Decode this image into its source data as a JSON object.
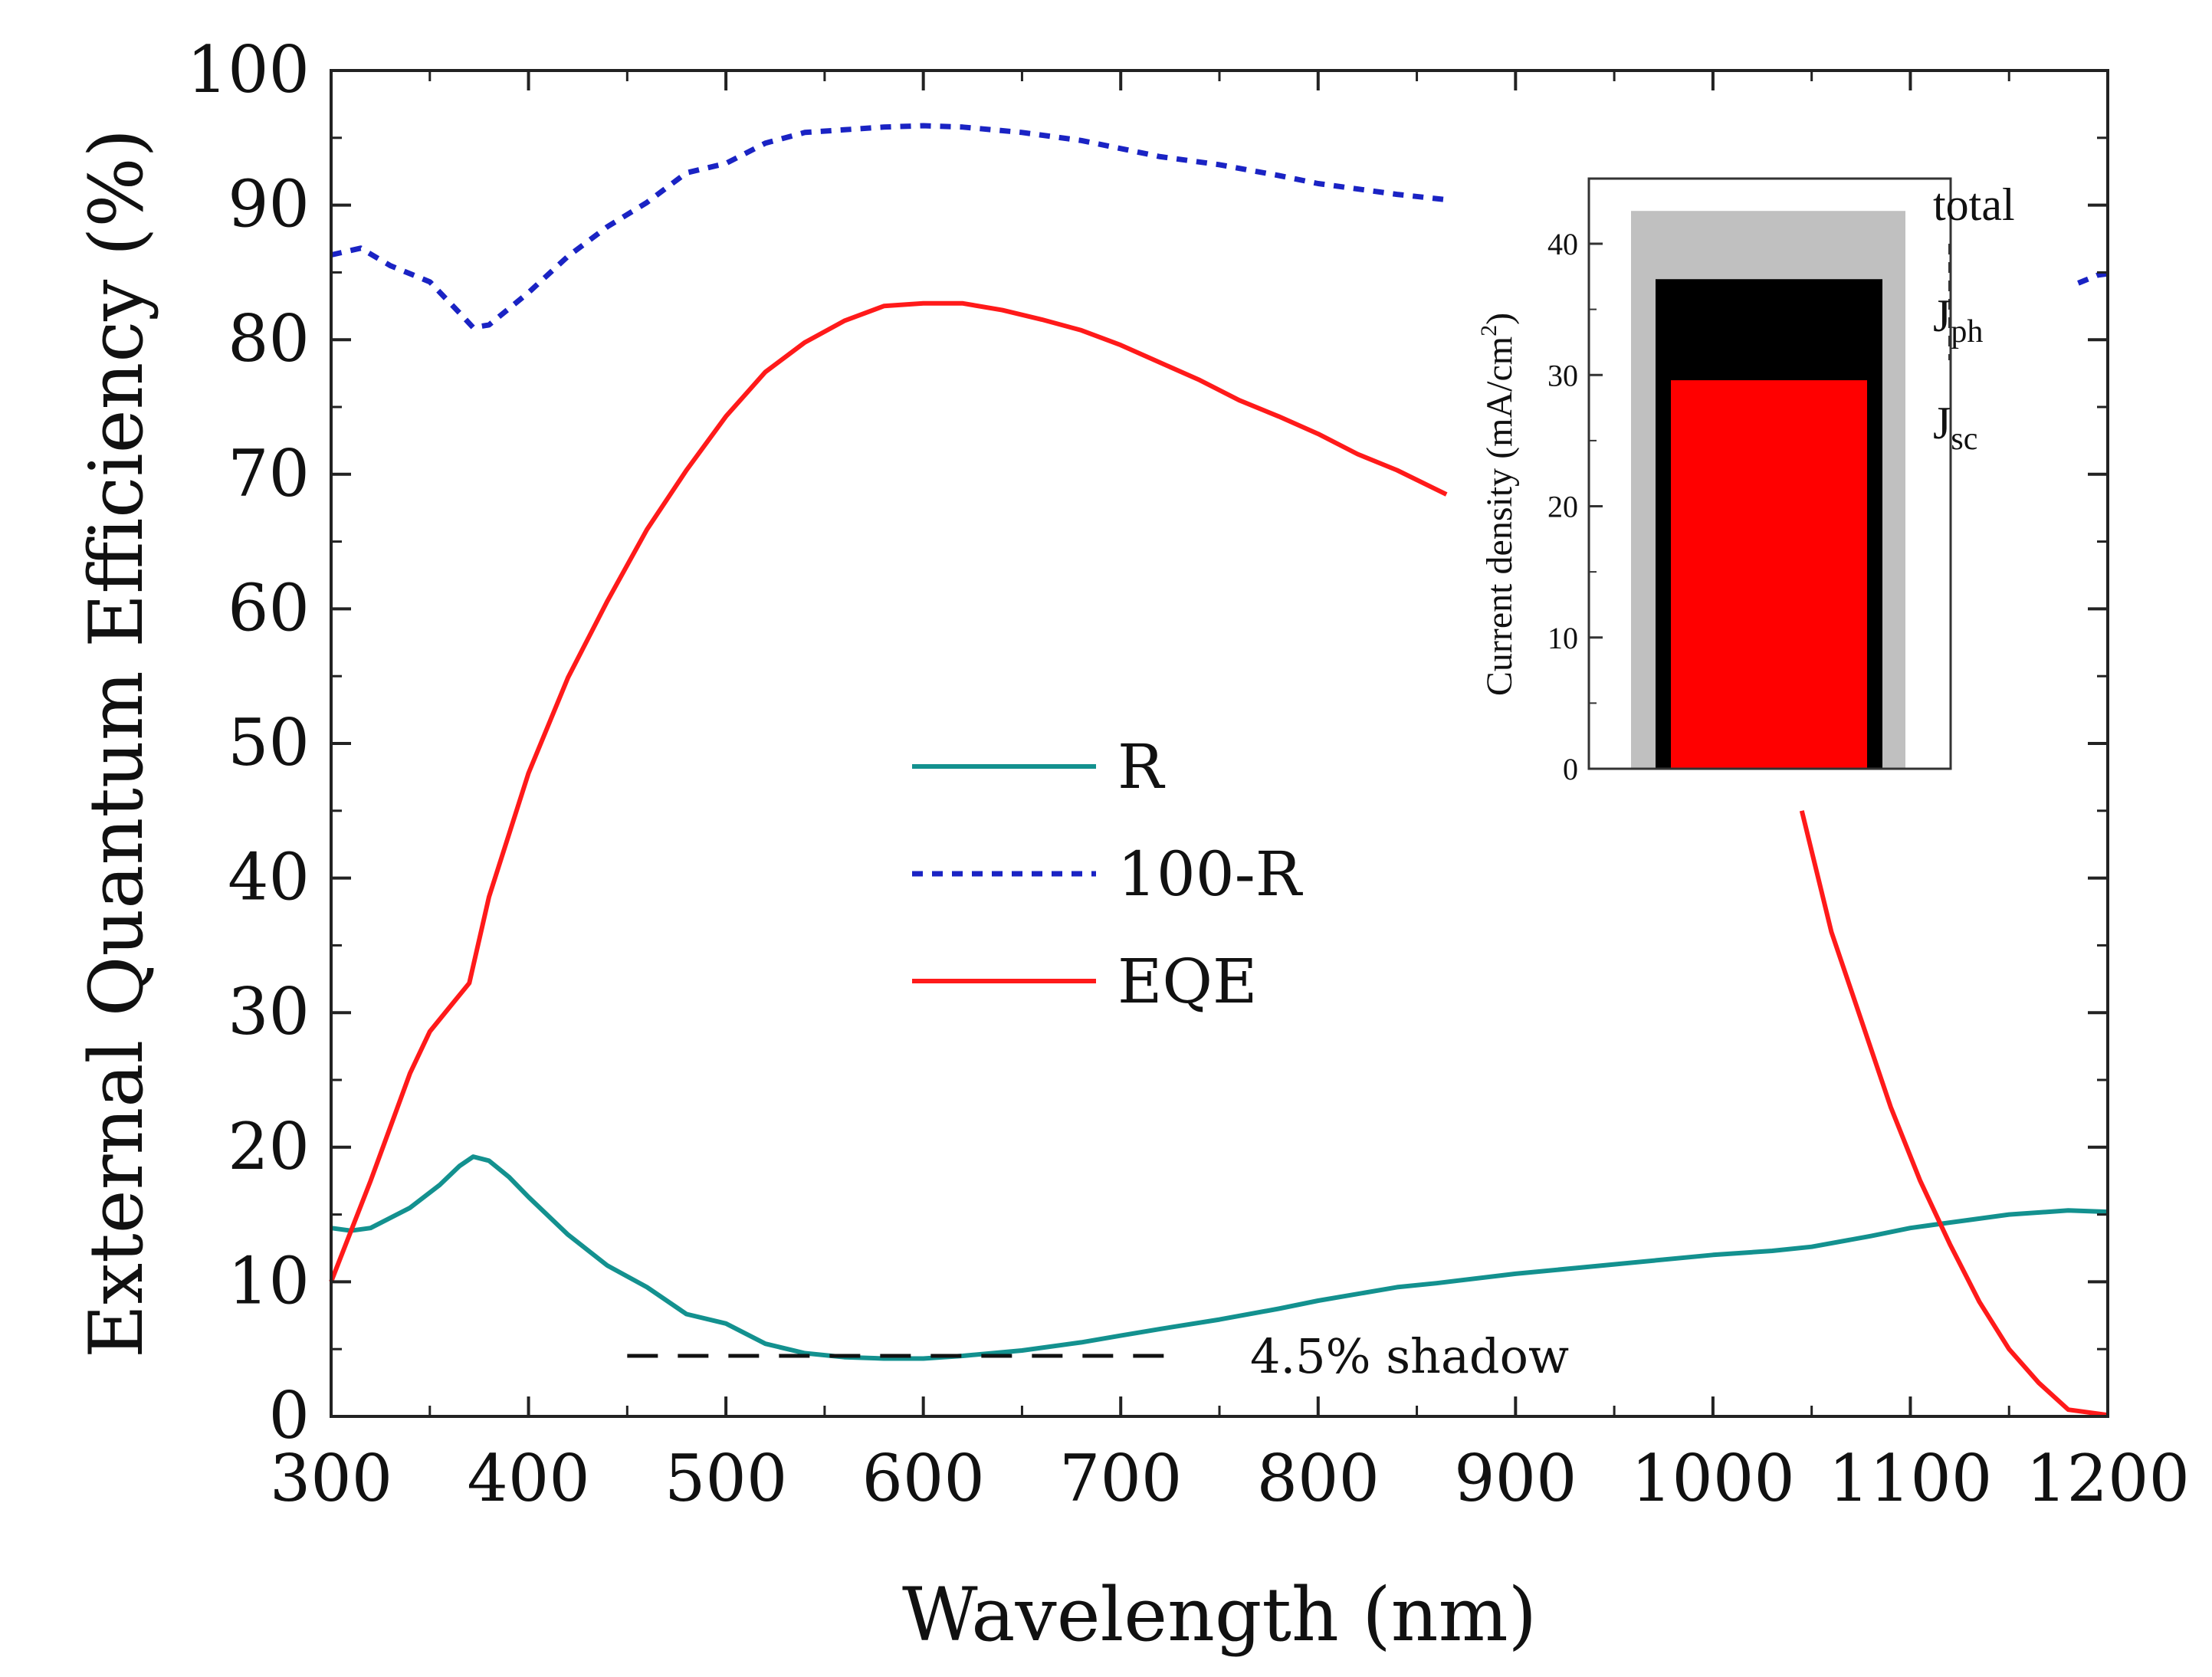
{
  "chart_data": [
    {
      "type": "line",
      "title": "",
      "xlabel": "Wavelength (nm)",
      "ylabel": "External Quantum Efficiency (%)",
      "xlim": [
        300,
        1200
      ],
      "ylim": [
        0,
        100
      ],
      "x_ticks": [
        300,
        400,
        500,
        600,
        700,
        800,
        900,
        1000,
        1100,
        1200
      ],
      "y_ticks": [
        0,
        10,
        20,
        30,
        40,
        50,
        60,
        70,
        80,
        90,
        100
      ],
      "x_tick_labels": [
        "300",
        "400",
        "500",
        "600",
        "700",
        "800",
        "900",
        "1000",
        "1100",
        "1200"
      ],
      "y_tick_labels": [
        "0",
        "10",
        "20",
        "30",
        "40",
        "50",
        "60",
        "70",
        "80",
        "90",
        "100"
      ],
      "grid": false,
      "legend_position": "center",
      "series": [
        {
          "name": "R",
          "color": "#13918f",
          "style": "solid",
          "x": [
            300,
            310,
            320,
            340,
            355,
            365,
            372,
            380,
            390,
            400,
            420,
            440,
            460,
            480,
            500,
            520,
            540,
            560,
            580,
            600,
            620,
            650,
            680,
            700,
            720,
            750,
            780,
            800,
            840,
            860,
            900,
            950,
            1000,
            1030,
            1050,
            1080,
            1100,
            1110,
            1130,
            1150,
            1180,
            1200
          ],
          "values": [
            14,
            13.8,
            14,
            15.5,
            17.2,
            18.6,
            19.3,
            19.0,
            17.8,
            16.3,
            13.5,
            11.2,
            9.6,
            7.6,
            6.9,
            5.4,
            4.7,
            4.4,
            4.3,
            4.3,
            4.5,
            4.9,
            5.5,
            6.0,
            6.5,
            7.2,
            8.0,
            8.6,
            9.6,
            9.9,
            10.6,
            11.3,
            12.0,
            12.3,
            12.6,
            13.4,
            14.0,
            14.2,
            14.6,
            15.0,
            15.3,
            15.2
          ]
        },
        {
          "name": "100-R",
          "color": "#1a23c4",
          "style": "dotted",
          "segments": [
            {
              "x": [
                300,
                315,
                330,
                350,
                365,
                372,
                380,
                400,
                420,
                440,
                460,
                480,
                500,
                520,
                540,
                560,
                580,
                600,
                620,
                650,
                680,
                700,
                720,
                750,
                780,
                800,
                840,
                865
              ],
              "values": [
                86.3,
                86.8,
                85.5,
                84.3,
                82.0,
                80.9,
                81.1,
                83.5,
                86.2,
                88.4,
                90.2,
                92.4,
                93.1,
                94.6,
                95.4,
                95.6,
                95.8,
                95.9,
                95.8,
                95.4,
                94.8,
                94.2,
                93.6,
                93.0,
                92.2,
                91.6,
                90.8,
                90.4
              ]
            },
            {
              "x": [
                1185,
                1195,
                1200
              ],
              "values": [
                84.2,
                84.8,
                84.9
              ]
            }
          ]
        },
        {
          "name": "EQE",
          "color": "#ff1a1a",
          "style": "solid",
          "segments": [
            {
              "x": [
                300,
                320,
                340,
                350,
                360,
                370,
                380,
                400,
                420,
                440,
                460,
                480,
                500,
                520,
                540,
                560,
                580,
                600,
                620,
                640,
                660,
                680,
                700,
                720,
                740,
                760,
                780,
                800,
                820,
                840,
                865
              ],
              "values": [
                10,
                17.5,
                25.5,
                28.6,
                30.4,
                32.2,
                38.6,
                47.8,
                54.9,
                60.6,
                65.9,
                70.3,
                74.3,
                77.6,
                79.8,
                81.4,
                82.5,
                82.7,
                82.7,
                82.2,
                81.5,
                80.7,
                79.6,
                78.3,
                77.0,
                75.5,
                74.3,
                73.0,
                71.5,
                70.3,
                68.5
              ]
            },
            {
              "x": [
                1045,
                1060,
                1075,
                1090,
                1105,
                1120,
                1135,
                1150,
                1165,
                1180,
                1200
              ],
              "values": [
                45.0,
                36.0,
                29.5,
                23.0,
                17.5,
                12.8,
                8.5,
                5.0,
                2.5,
                0.5,
                0.1
              ]
            }
          ]
        }
      ],
      "annotations": [
        {
          "text": "4.5% shadow",
          "x": 750,
          "y": 4.5,
          "line": {
            "x": [
              450,
              730
            ],
            "y": 4.5,
            "style": "dashed",
            "color": "#111111"
          }
        }
      ]
    },
    {
      "type": "bar",
      "inset": true,
      "title": "",
      "xlabel": "",
      "ylabel": "Current density (mA/cm²)",
      "ylabel_main": "Current density (mA/cm",
      "ylabel_sup": "2",
      "ylabel_close": ")",
      "ylim": [
        0,
        45
      ],
      "y_ticks": [
        0,
        10,
        20,
        30,
        40
      ],
      "y_tick_labels": [
        "0",
        "10",
        "20",
        "30",
        "40"
      ],
      "stacked_overlay": true,
      "bars": [
        {
          "name": "total",
          "label_main": "total",
          "label_sub": "",
          "value": 42.5,
          "color": "#c0c0c0"
        },
        {
          "name": "Jph",
          "label_main": "J",
          "label_sub": "ph",
          "value": 37.3,
          "color": "#000000"
        },
        {
          "name": "Jsc",
          "label_main": "J",
          "label_sub": "sc",
          "value": 29.6,
          "color": "#ff0000"
        }
      ]
    }
  ]
}
